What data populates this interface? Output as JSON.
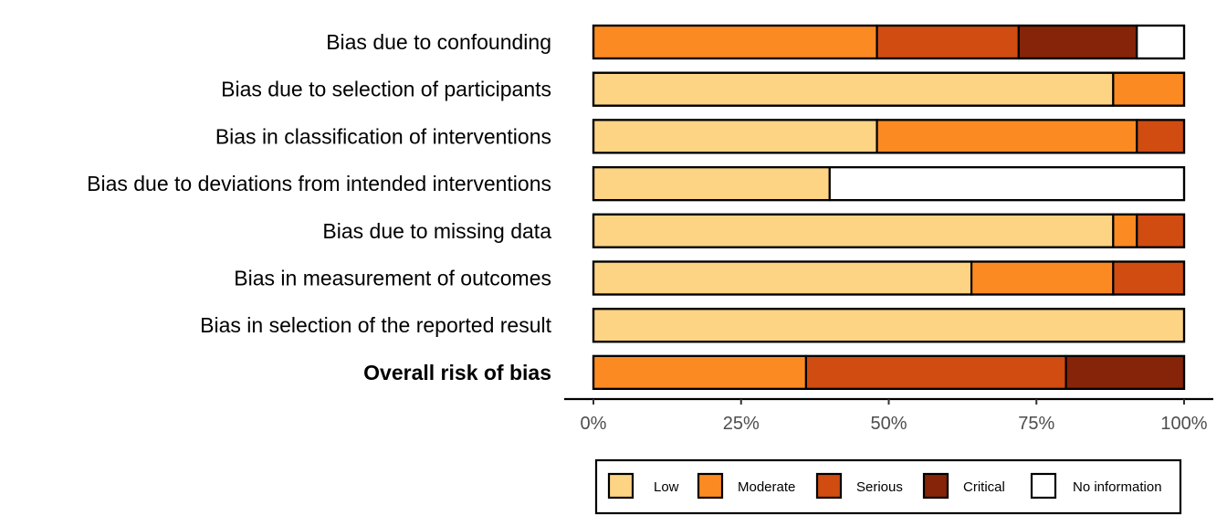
{
  "chart_data": {
    "type": "bar",
    "orientation": "horizontal",
    "stacked": true,
    "categories": [
      "Bias due to confounding",
      "Bias due to selection of participants",
      "Bias in classification of interventions",
      "Bias due to deviations from intended interventions",
      "Bias due to missing data",
      "Bias in measurement of outcomes",
      "Bias in selection of the reported result",
      "Overall risk of bias"
    ],
    "bold_categories": [
      "Overall risk of bias"
    ],
    "series": [
      {
        "name": "Low",
        "color": "#FDD384",
        "values": [
          0,
          88,
          48,
          40,
          88,
          64,
          100,
          0
        ]
      },
      {
        "name": "Moderate",
        "color": "#FC8A22",
        "values": [
          48,
          12,
          44,
          0,
          4,
          24,
          0,
          36
        ]
      },
      {
        "name": "Serious",
        "color": "#D04C11",
        "values": [
          24,
          0,
          8,
          0,
          8,
          12,
          0,
          44
        ]
      },
      {
        "name": "Critical",
        "color": "#852408",
        "values": [
          20,
          0,
          0,
          0,
          0,
          0,
          0,
          20
        ]
      },
      {
        "name": "No information",
        "color": "#FFFFFF",
        "values": [
          8,
          0,
          0,
          60,
          0,
          0,
          0,
          0
        ]
      }
    ],
    "xlim": [
      0,
      100
    ],
    "x_ticks": [
      "0%",
      "25%",
      "50%",
      "75%",
      "100%"
    ],
    "xlabel": "",
    "ylabel": "",
    "title": "",
    "grid": false,
    "legend_position": "bottom"
  }
}
